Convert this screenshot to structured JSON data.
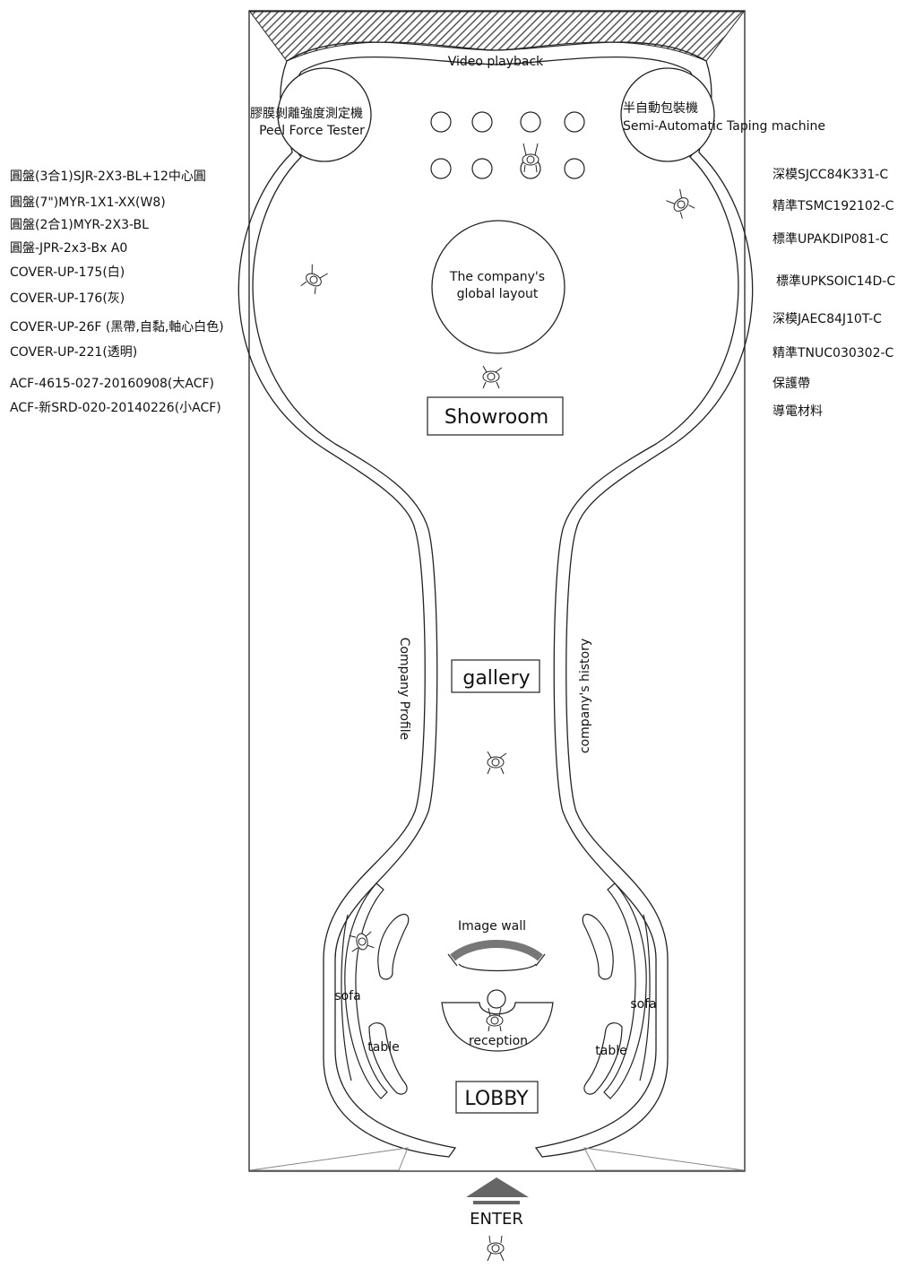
{
  "left_products": [
    "圓盤(3合1)SJR-2X3-BL+12中心圓",
    "圓盤(7\")MYR-1X1-XX(W8)",
    "圓盤(2合1)MYR-2X3-BL",
    "圓盤-JPR-2x3-Bx A0",
    "COVER-UP-175(白)",
    "COVER-UP-176(灰)",
    "COVER-UP-26F (黑帶,自黏,軸心白色)",
    "COVER-UP-221(透明)",
    "ACF-4615-027-20160908(大ACF)",
    "ACF-新SRD-020-20140226(小ACF)"
  ],
  "right_products": [
    "深模SJCC84K331-C",
    "精準TSMC192102-C",
    "標準UPAKDIP081-C",
    "標準UPKSOIC14D-C",
    "深模JAEC84J10T-C",
    "精準TNUC030302-C",
    "保護帶",
    "導電材料"
  ],
  "plan": {
    "video_playback": "Video playback",
    "machine_left_zh": "膠膜剝離強度測定機",
    "machine_left_en": "Peel Force Tester",
    "machine_right_zh": "半自動包裝機",
    "machine_right_en": "Semi-Automatic Taping machine",
    "global_layout_line1": "The company's",
    "global_layout_line2": "global layout",
    "showroom": "Showroom",
    "gallery": "gallery",
    "company_profile": "Company Profile",
    "company_history": "company's history",
    "image_wall": "Image wall",
    "sofa_left": "sofa",
    "sofa_right": "sofa",
    "table_left": "table",
    "table_right": "table",
    "reception": "reception",
    "lobby": "LOBBY",
    "enter": "ENTER"
  },
  "colors": {
    "line": "#222222",
    "hatch": "#555555",
    "arrow": "#666666",
    "image_wall": "#777777"
  }
}
